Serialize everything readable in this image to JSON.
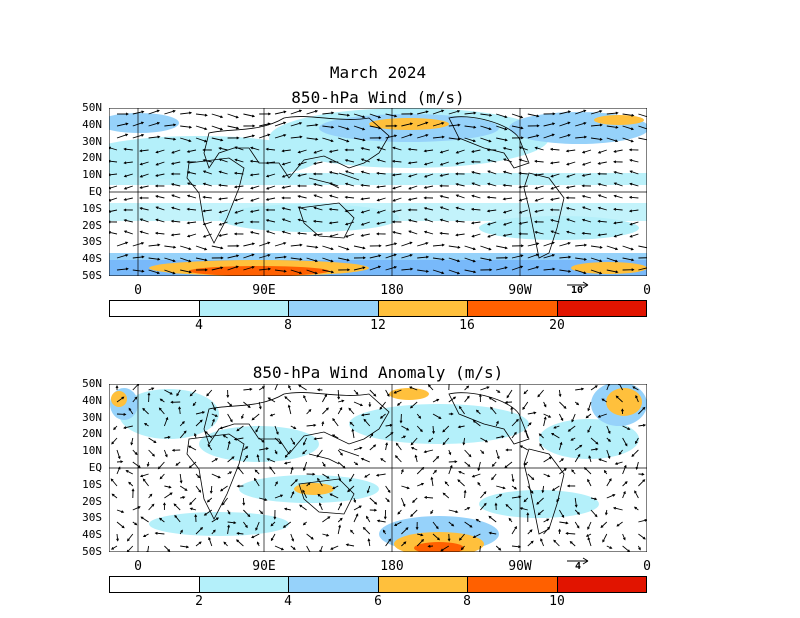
{
  "header": {
    "month": "March 2024"
  },
  "panels": [
    {
      "title": "850-hPa Wind (m/s)",
      "lat_labels": [
        "50N",
        "40N",
        "30N",
        "20N",
        "10N",
        "EQ",
        "10S",
        "20S",
        "30S",
        "40S",
        "50S"
      ],
      "lon_labels": [
        "0",
        "90E",
        "180",
        "90W",
        "0"
      ],
      "ref_vector_label": "10",
      "colorbar": {
        "colors": [
          "#ffffff",
          "#b4f0fa",
          "#96d2fa",
          "#78b9fa",
          "#ffc03c",
          "#ff6000",
          "#e11400"
        ],
        "labels": [
          "4",
          "8",
          "12",
          "16",
          "20"
        ]
      }
    },
    {
      "title": "850-hPa Wind Anomaly (m/s)",
      "lat_labels": [
        "50N",
        "40N",
        "30N",
        "20N",
        "10N",
        "EQ",
        "10S",
        "20S",
        "30S",
        "40S",
        "50S"
      ],
      "lon_labels": [
        "0",
        "90E",
        "180",
        "90W",
        "0"
      ],
      "ref_vector_label": "4",
      "colorbar": {
        "colors": [
          "#ffffff",
          "#b4f0fa",
          "#96d2fa",
          "#78b9fa",
          "#ffc03c",
          "#ff6000",
          "#e11400"
        ],
        "labels": [
          "2",
          "4",
          "6",
          "8",
          "10"
        ]
      }
    }
  ]
}
